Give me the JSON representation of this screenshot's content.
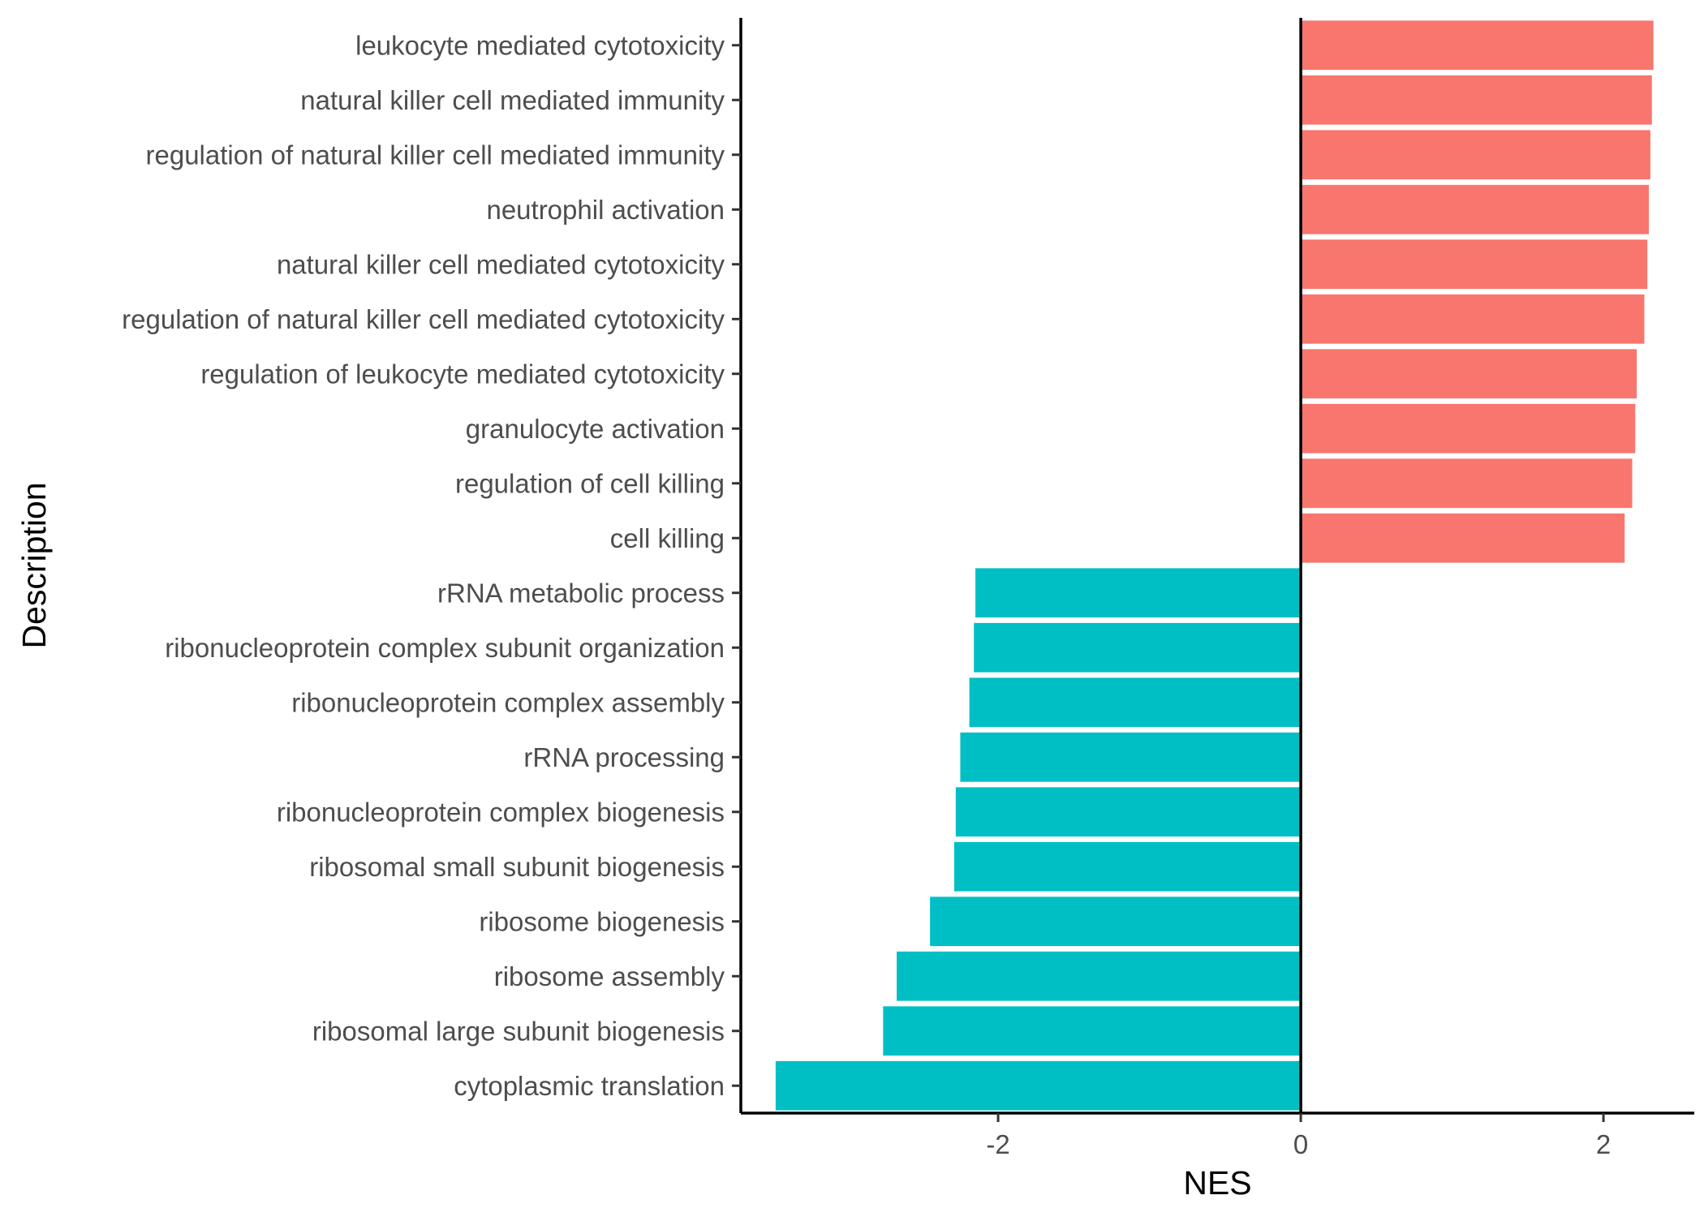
{
  "chart_data": {
    "type": "bar",
    "orientation": "horizontal",
    "title": "",
    "xlabel": "NES",
    "ylabel": "Description",
    "xlim": [
      -3.7,
      2.6
    ],
    "x_ticks": [
      -2,
      0,
      2
    ],
    "x_tick_labels": [
      "-2",
      "0",
      "2"
    ],
    "grid": false,
    "legend": "none",
    "colors": {
      "positive": "#F8766D",
      "negative": "#00BFC4"
    },
    "categories": [
      "leukocyte mediated cytotoxicity",
      "natural killer cell mediated immunity",
      "regulation of natural killer cell mediated immunity",
      "neutrophil activation",
      "natural killer cell mediated cytotoxicity",
      "regulation of natural killer cell mediated cytotoxicity",
      "regulation of leukocyte mediated cytotoxicity",
      "granulocyte activation",
      "regulation of cell killing",
      "cell killing",
      "rRNA metabolic process",
      "ribonucleoprotein complex subunit organization",
      "ribonucleoprotein complex assembly",
      "rRNA processing",
      "ribonucleoprotein complex biogenesis",
      "ribosomal small subunit biogenesis",
      "ribosome biogenesis",
      "ribosome assembly",
      "ribosomal large subunit biogenesis",
      "cytoplasmic translation"
    ],
    "values": [
      2.33,
      2.32,
      2.31,
      2.3,
      2.29,
      2.27,
      2.22,
      2.21,
      2.19,
      2.14,
      -2.15,
      -2.16,
      -2.19,
      -2.25,
      -2.28,
      -2.29,
      -2.45,
      -2.67,
      -2.76,
      -3.47
    ]
  }
}
